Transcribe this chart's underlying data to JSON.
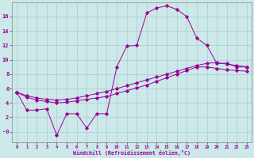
{
  "xlabel": "Windchill (Refroidissement éolien,°C)",
  "background_color": "#cce8e8",
  "grid_color": "#aacccc",
  "line_color": "#990099",
  "xlim": [
    -0.5,
    23.5
  ],
  "ylim": [
    -1.5,
    18
  ],
  "yticks": [
    0,
    2,
    4,
    6,
    8,
    10,
    12,
    14,
    16
  ],
  "xticks": [
    0,
    1,
    2,
    3,
    4,
    5,
    6,
    7,
    8,
    9,
    10,
    11,
    12,
    13,
    14,
    15,
    16,
    17,
    18,
    19,
    20,
    21,
    22,
    23
  ],
  "series1_x": [
    0,
    1,
    2,
    3,
    4,
    5,
    6,
    7,
    8,
    9,
    10,
    11,
    12,
    13,
    14,
    15,
    16,
    17,
    18,
    19,
    20,
    21,
    22,
    23
  ],
  "series1_y": [
    5.5,
    3.0,
    3.0,
    3.2,
    -0.5,
    2.5,
    2.5,
    0.5,
    2.5,
    2.5,
    9.0,
    11.9,
    12.0,
    16.5,
    17.2,
    17.5,
    17.0,
    16.0,
    13.0,
    12.0,
    9.5,
    9.5,
    9.0,
    9.0
  ],
  "series2_x": [
    0,
    1,
    2,
    3,
    4,
    5,
    6,
    7,
    8,
    9,
    10,
    11,
    12,
    13,
    14,
    15,
    16,
    17,
    18,
    19,
    20,
    21,
    22,
    23
  ],
  "series2_y": [
    5.5,
    5.0,
    4.7,
    4.5,
    4.4,
    4.5,
    4.7,
    5.0,
    5.3,
    5.6,
    6.0,
    6.4,
    6.8,
    7.2,
    7.6,
    8.0,
    8.4,
    8.8,
    9.2,
    9.5,
    9.6,
    9.4,
    9.2,
    9.0
  ],
  "series3_x": [
    0,
    1,
    2,
    3,
    4,
    5,
    6,
    7,
    8,
    9,
    10,
    11,
    12,
    13,
    14,
    15,
    16,
    17,
    18,
    19,
    20,
    21,
    22,
    23
  ],
  "series3_y": [
    5.5,
    4.8,
    4.4,
    4.2,
    4.0,
    4.1,
    4.3,
    4.5,
    4.7,
    4.9,
    5.3,
    5.7,
    6.1,
    6.5,
    7.0,
    7.5,
    8.0,
    8.5,
    9.0,
    9.0,
    8.8,
    8.6,
    8.5,
    8.4
  ]
}
